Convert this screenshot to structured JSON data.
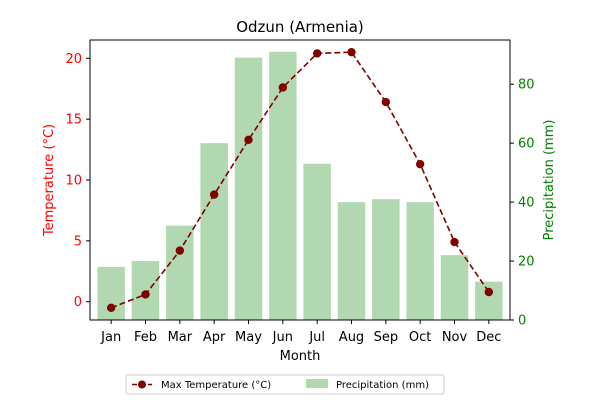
{
  "chart_data": {
    "type": "bar+line",
    "title": "Odzun (Armenia)",
    "xlabel": "Month",
    "ylabel_left": "Temperature (°C)",
    "ylabel_right": "Precipitation (mm)",
    "categories": [
      "Jan",
      "Feb",
      "Mar",
      "Apr",
      "May",
      "Jun",
      "Jul",
      "Aug",
      "Sep",
      "Oct",
      "Nov",
      "Dec"
    ],
    "ylim_left": [
      -1.5,
      21.5
    ],
    "ylim_right": [
      0,
      95
    ],
    "yticks_left": [
      0,
      5,
      10,
      15,
      20
    ],
    "yticks_right": [
      0,
      20,
      40,
      60,
      80
    ],
    "series": [
      {
        "name": "Max Temperature (°C)",
        "type": "line",
        "axis": "left",
        "color": "#800000",
        "values": [
          -0.5,
          0.6,
          4.2,
          8.8,
          13.3,
          17.6,
          20.4,
          20.5,
          16.4,
          11.3,
          4.9,
          0.8
        ]
      },
      {
        "name": "Precipitation (mm)",
        "type": "bar",
        "axis": "right",
        "color": "#b2d8b2",
        "values": [
          18,
          20,
          32,
          60,
          89,
          91,
          53,
          40,
          41,
          40,
          22,
          13
        ]
      }
    ],
    "legend": "bottom-center",
    "grid": false,
    "left_axis_color": "#ff0000",
    "right_axis_color": "#008000"
  }
}
